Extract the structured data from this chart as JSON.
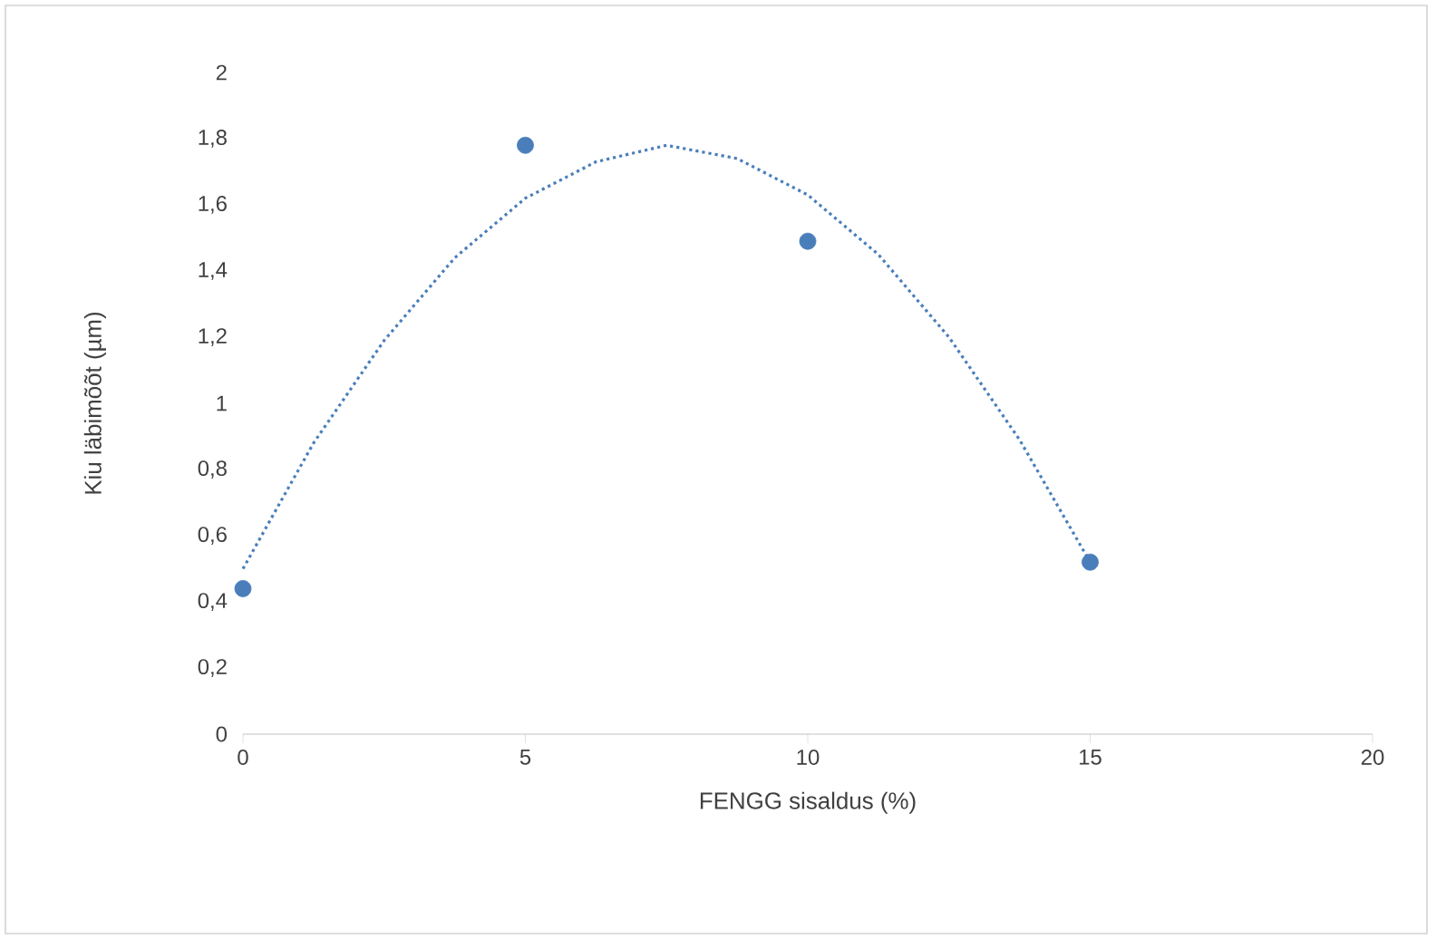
{
  "chart_data": {
    "type": "scatter",
    "xlabel": "FENGG sisaldus (%)",
    "ylabel": "Kiu läbimõõt (µm)",
    "xlim": [
      0,
      20
    ],
    "xticks": [
      0,
      5,
      10,
      15,
      20
    ],
    "ylim": [
      0,
      2
    ],
    "yticks": [
      0,
      {
        "value": 0.2,
        "label": "0,2"
      },
      {
        "value": 0.4,
        "label": "0,4"
      },
      {
        "value": 0.6,
        "label": "0,6"
      },
      {
        "value": 0.8,
        "label": "0,8"
      },
      1,
      {
        "value": 1.2,
        "label": "1,2"
      },
      {
        "value": 1.4,
        "label": "1,4"
      },
      {
        "value": 1.6,
        "label": "1,6"
      },
      {
        "value": 1.8,
        "label": "1,8"
      },
      2
    ],
    "grid": false,
    "series": [
      {
        "color": "#4a7ebb",
        "marker": "circle",
        "x": [
          0,
          5,
          10,
          15
        ],
        "values": [
          0.44,
          1.78,
          1.49,
          0.52
        ]
      },
      {
        "type": "line",
        "color": "#4a7ebb",
        "marker": "none",
        "line_style": "dotted",
        "x": [
          0,
          1.25,
          2.5,
          3.75,
          5,
          6.25,
          7.5,
          8.75,
          10,
          11.25,
          12.5,
          13.75,
          15
        ],
        "values": [
          0.5,
          0.88,
          1.19,
          1.44,
          1.62,
          1.73,
          1.78,
          1.74,
          1.63,
          1.45,
          1.2,
          0.89,
          0.52
        ]
      }
    ]
  }
}
